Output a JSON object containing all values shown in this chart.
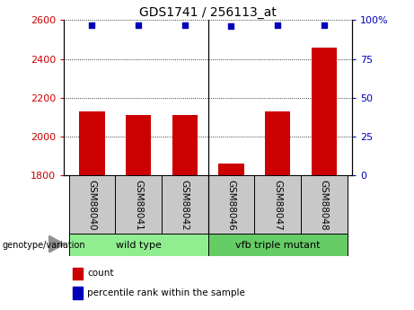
{
  "title": "GDS1741 / 256113_at",
  "samples": [
    "GSM88040",
    "GSM88041",
    "GSM88042",
    "GSM88046",
    "GSM88047",
    "GSM88048"
  ],
  "counts": [
    2130,
    2110,
    2110,
    1860,
    2130,
    2460
  ],
  "percentile_ranks": [
    97,
    97,
    97,
    96,
    97,
    97
  ],
  "ylim_left": [
    1800,
    2600
  ],
  "ylim_right": [
    0,
    100
  ],
  "yticks_left": [
    1800,
    2000,
    2200,
    2400,
    2600
  ],
  "yticks_right": [
    0,
    25,
    50,
    75,
    100
  ],
  "bar_color": "#CC0000",
  "dot_color": "#0000BB",
  "bar_width": 0.55,
  "left_tick_color": "#CC0000",
  "right_tick_color": "#0000BB",
  "legend_items": [
    {
      "color": "#CC0000",
      "label": "count"
    },
    {
      "color": "#0000BB",
      "label": "percentile rank within the sample"
    }
  ],
  "group_label": "genotype/variation",
  "separator_index": 3,
  "wt_color": "#90EE90",
  "mut_color": "#66CC66",
  "sample_box_color": "#C8C8C8"
}
